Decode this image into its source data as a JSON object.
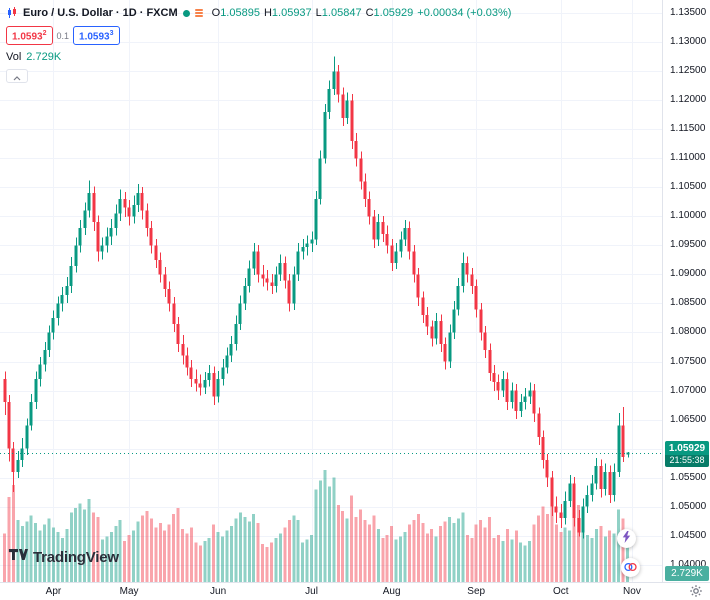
{
  "colors": {
    "up": "#089981",
    "down": "#f23645",
    "vol_up": "rgba(8,153,129,0.45)",
    "vol_down": "rgba(242,54,69,0.45)",
    "grid": "#f0f3fa",
    "accent_blue": "#2962ff",
    "badge": "#089981",
    "badge_dark": "#077c68"
  },
  "header": {
    "title": "Euro / U.S. Dollar · 1D · FXCM",
    "ohlc": {
      "o_label": "O",
      "o": "1.05895",
      "h_label": "H",
      "h": "1.05937",
      "l_label": "L",
      "l": "1.05847",
      "c_label": "C",
      "c": "1.05929",
      "change": "+0.00034 (+0.03%)"
    },
    "bid_ask": {
      "bid": "1.0593",
      "bid_sup": "2",
      "spread": "0.1",
      "ask": "1.0593",
      "ask_sup": "3"
    },
    "volume": {
      "label": "Vol",
      "value": "2.729K"
    }
  },
  "price_scale": {
    "current_price": "1.05929",
    "countdown": "21:55:38",
    "volume_badge": "2.729K"
  },
  "logo": {
    "brand": "TradingView"
  },
  "icons": {
    "pair": "mini-candles",
    "legend_dot": "live-dot",
    "legend_menu": "provider-bars",
    "collapse": "chevron-up",
    "actions": [
      "lightning-bolt",
      "venn-circles"
    ],
    "settings": "gear"
  },
  "chart_data": {
    "type": "candlestick",
    "title": "Euro / U.S. Dollar, 1D, FXCM",
    "symbol": "EUR/USD",
    "timeframe": "1D",
    "exchange": "FXCM",
    "y_range": [
      1.037,
      1.1373
    ],
    "y_ticks": [
      "1.13500",
      "1.13000",
      "1.12500",
      "1.12000",
      "1.11500",
      "1.11000",
      "1.10500",
      "1.10000",
      "1.09500",
      "1.09000",
      "1.08500",
      "1.08000",
      "1.07500",
      "1.07000",
      "1.06500",
      "1.06000",
      "1.05500",
      "1.05000",
      "1.04500",
      "1.04000"
    ],
    "month_ticks": [
      {
        "label": "Apr",
        "index": 11
      },
      {
        "label": "May",
        "index": 28
      },
      {
        "label": "Jun",
        "index": 48
      },
      {
        "label": "Jul",
        "index": 69
      },
      {
        "label": "Aug",
        "index": 87
      },
      {
        "label": "Sep",
        "index": 106
      },
      {
        "label": "Oct",
        "index": 125
      },
      {
        "label": "Nov",
        "index": 141
      }
    ],
    "volume_unit": "K",
    "candles": [
      [
        1.072,
        1.0733,
        1.0658,
        1.068,
        3.2
      ],
      [
        1.068,
        1.0692,
        1.0578,
        1.06,
        5.6
      ],
      [
        1.06,
        1.0611,
        1.0525,
        1.056,
        6.4
      ],
      [
        1.056,
        1.0596,
        1.0549,
        1.058,
        4.1
      ],
      [
        1.058,
        1.0618,
        1.0568,
        1.06,
        3.7
      ],
      [
        1.06,
        1.0652,
        1.0589,
        1.064,
        4.0
      ],
      [
        1.064,
        1.0694,
        1.0631,
        1.068,
        4.4
      ],
      [
        1.068,
        1.0733,
        1.0668,
        1.072,
        3.9
      ],
      [
        1.072,
        1.0758,
        1.0707,
        1.0745,
        3.4
      ],
      [
        1.0745,
        1.0784,
        1.0733,
        1.077,
        3.8
      ],
      [
        1.077,
        1.0812,
        1.0758,
        1.08,
        4.2
      ],
      [
        1.08,
        1.0838,
        1.0788,
        1.0825,
        3.6
      ],
      [
        1.0825,
        1.0862,
        1.0812,
        1.085,
        3.3
      ],
      [
        1.085,
        1.0878,
        1.0836,
        1.0865,
        2.9
      ],
      [
        1.0865,
        1.0896,
        1.0851,
        1.088,
        3.5
      ],
      [
        1.088,
        1.093,
        1.0868,
        1.0915,
        4.6
      ],
      [
        1.0915,
        1.0964,
        1.0903,
        1.095,
        4.9
      ],
      [
        1.095,
        1.0994,
        1.0938,
        1.098,
        5.2
      ],
      [
        1.098,
        1.1024,
        1.0968,
        1.101,
        4.8
      ],
      [
        1.101,
        1.1062,
        1.0998,
        1.104,
        5.5
      ],
      [
        1.104,
        1.1052,
        1.0975,
        1.099,
        4.6
      ],
      [
        1.099,
        1.1002,
        1.0922,
        1.094,
        4.3
      ],
      [
        1.094,
        1.0964,
        1.0926,
        1.095,
        2.8
      ],
      [
        1.095,
        1.0981,
        1.0938,
        1.0965,
        3.0
      ],
      [
        1.0965,
        1.0996,
        1.0951,
        1.098,
        3.3
      ],
      [
        1.098,
        1.1021,
        1.0967,
        1.1005,
        3.7
      ],
      [
        1.1005,
        1.1046,
        1.0992,
        1.103,
        4.1
      ],
      [
        1.103,
        1.1042,
        1.0999,
        1.1015,
        2.7
      ],
      [
        1.1015,
        1.1028,
        1.0984,
        1.1,
        3.1
      ],
      [
        1.1,
        1.1036,
        1.0988,
        1.102,
        3.4
      ],
      [
        1.102,
        1.1056,
        1.1008,
        1.104,
        4.0
      ],
      [
        1.104,
        1.1051,
        1.0995,
        1.101,
        4.4
      ],
      [
        1.101,
        1.1022,
        1.0965,
        1.098,
        4.7
      ],
      [
        1.098,
        1.0992,
        1.0936,
        1.095,
        4.2
      ],
      [
        1.095,
        1.0961,
        1.0911,
        1.0925,
        3.6
      ],
      [
        1.0925,
        1.0938,
        1.0886,
        1.09,
        3.9
      ],
      [
        1.09,
        1.0913,
        1.0861,
        1.0875,
        3.4
      ],
      [
        1.0875,
        1.0888,
        1.0836,
        1.085,
        3.8
      ],
      [
        1.085,
        1.0861,
        1.0801,
        1.0815,
        4.5
      ],
      [
        1.0815,
        1.0827,
        1.0766,
        1.078,
        4.9
      ],
      [
        1.078,
        1.0796,
        1.0745,
        1.076,
        3.5
      ],
      [
        1.076,
        1.0774,
        1.0726,
        1.074,
        3.2
      ],
      [
        1.074,
        1.0753,
        1.0706,
        1.072,
        3.6
      ],
      [
        1.072,
        1.0736,
        1.0698,
        1.0712,
        2.6
      ],
      [
        1.0712,
        1.0728,
        1.0691,
        1.0705,
        2.4
      ],
      [
        1.0705,
        1.0732,
        1.0694,
        1.0718,
        2.7
      ],
      [
        1.0718,
        1.0744,
        1.0707,
        1.073,
        2.9
      ],
      [
        1.073,
        1.0741,
        1.0675,
        1.069,
        3.8
      ],
      [
        1.069,
        1.0734,
        1.0679,
        1.072,
        3.3
      ],
      [
        1.072,
        1.0754,
        1.0709,
        1.074,
        3.0
      ],
      [
        1.074,
        1.0774,
        1.0729,
        1.076,
        3.4
      ],
      [
        1.076,
        1.0794,
        1.0749,
        1.078,
        3.7
      ],
      [
        1.078,
        1.0829,
        1.0769,
        1.0815,
        4.2
      ],
      [
        1.0815,
        1.0864,
        1.0804,
        1.085,
        4.6
      ],
      [
        1.085,
        1.0894,
        1.0839,
        1.088,
        4.3
      ],
      [
        1.088,
        1.0924,
        1.0869,
        1.091,
        4.0
      ],
      [
        1.091,
        1.0954,
        1.0899,
        1.094,
        4.5
      ],
      [
        1.094,
        1.0951,
        1.0886,
        1.09,
        3.9
      ],
      [
        1.09,
        1.0916,
        1.0879,
        1.0893,
        2.5
      ],
      [
        1.0893,
        1.0908,
        1.0872,
        1.0886,
        2.3
      ],
      [
        1.0886,
        1.0901,
        1.0866,
        1.088,
        2.6
      ],
      [
        1.088,
        1.0914,
        1.0869,
        1.09,
        2.9
      ],
      [
        1.09,
        1.0934,
        1.0889,
        1.092,
        3.2
      ],
      [
        1.092,
        1.0931,
        1.0876,
        1.089,
        3.6
      ],
      [
        1.089,
        1.0901,
        1.0836,
        1.085,
        4.1
      ],
      [
        1.085,
        1.0914,
        1.0839,
        1.09,
        4.4
      ],
      [
        1.09,
        1.0954,
        1.0889,
        1.094,
        4.1
      ],
      [
        1.094,
        1.0961,
        1.0926,
        1.0947,
        2.6
      ],
      [
        1.0947,
        1.0967,
        1.0933,
        1.0953,
        2.8
      ],
      [
        1.0953,
        1.0974,
        1.0939,
        1.096,
        3.1
      ],
      [
        1.096,
        1.1044,
        1.0951,
        1.103,
        6.1
      ],
      [
        1.103,
        1.1114,
        1.1021,
        1.11,
        6.7
      ],
      [
        1.11,
        1.1194,
        1.1091,
        1.118,
        7.4
      ],
      [
        1.118,
        1.1234,
        1.1168,
        1.122,
        6.3
      ],
      [
        1.122,
        1.1276,
        1.1209,
        1.125,
        6.9
      ],
      [
        1.125,
        1.1261,
        1.1196,
        1.121,
        5.1
      ],
      [
        1.121,
        1.1222,
        1.1156,
        1.117,
        4.7
      ],
      [
        1.117,
        1.1214,
        1.1159,
        1.12,
        4.2
      ],
      [
        1.12,
        1.1211,
        1.1116,
        1.113,
        5.7
      ],
      [
        1.113,
        1.1144,
        1.1086,
        1.11,
        4.3
      ],
      [
        1.11,
        1.1112,
        1.1046,
        1.106,
        4.8
      ],
      [
        1.106,
        1.1074,
        1.1016,
        1.103,
        4.1
      ],
      [
        1.103,
        1.1043,
        1.0986,
        1.1,
        3.8
      ],
      [
        1.1,
        1.1011,
        1.0946,
        1.096,
        4.4
      ],
      [
        1.096,
        1.1004,
        1.0949,
        1.099,
        3.5
      ],
      [
        1.099,
        1.1001,
        1.0956,
        1.097,
        2.9
      ],
      [
        1.097,
        1.0984,
        1.0936,
        1.095,
        3.1
      ],
      [
        1.095,
        1.0961,
        1.0906,
        1.092,
        3.7
      ],
      [
        1.092,
        1.0954,
        1.0909,
        1.094,
        2.8
      ],
      [
        1.094,
        1.0974,
        1.0929,
        1.096,
        3.0
      ],
      [
        1.096,
        1.0994,
        1.0949,
        1.098,
        3.3
      ],
      [
        1.098,
        1.0991,
        1.0926,
        1.094,
        3.8
      ],
      [
        1.094,
        1.0951,
        1.0886,
        1.09,
        4.1
      ],
      [
        1.09,
        1.0911,
        1.0846,
        1.086,
        4.5
      ],
      [
        1.086,
        1.0871,
        1.0816,
        1.083,
        3.9
      ],
      [
        1.083,
        1.0844,
        1.0796,
        1.081,
        3.2
      ],
      [
        1.081,
        1.0821,
        1.0776,
        1.079,
        3.5
      ],
      [
        1.079,
        1.0834,
        1.0779,
        1.082,
        3.0
      ],
      [
        1.082,
        1.0831,
        1.0766,
        1.078,
        3.7
      ],
      [
        1.078,
        1.0791,
        1.0736,
        1.075,
        4.0
      ],
      [
        1.075,
        1.0814,
        1.0739,
        1.08,
        4.3
      ],
      [
        1.08,
        1.0854,
        1.0789,
        1.084,
        3.9
      ],
      [
        1.084,
        1.0894,
        1.0829,
        1.088,
        4.2
      ],
      [
        1.088,
        1.0938,
        1.0869,
        1.092,
        4.6
      ],
      [
        1.092,
        1.0931,
        1.0886,
        1.09,
        3.1
      ],
      [
        1.09,
        1.0911,
        1.0866,
        1.088,
        2.9
      ],
      [
        1.088,
        1.0891,
        1.0826,
        1.084,
        3.8
      ],
      [
        1.084,
        1.0851,
        1.0786,
        1.08,
        4.1
      ],
      [
        1.08,
        1.0811,
        1.0756,
        1.077,
        3.6
      ],
      [
        1.077,
        1.0781,
        1.0716,
        1.073,
        4.3
      ],
      [
        1.073,
        1.0744,
        1.0699,
        1.0715,
        2.9
      ],
      [
        1.0715,
        1.0728,
        1.0684,
        1.07,
        3.1
      ],
      [
        1.07,
        1.0734,
        1.0689,
        1.072,
        2.7
      ],
      [
        1.072,
        1.0731,
        1.0666,
        1.068,
        3.5
      ],
      [
        1.068,
        1.0714,
        1.0669,
        1.07,
        2.8
      ],
      [
        1.07,
        1.0711,
        1.0651,
        1.0665,
        3.4
      ],
      [
        1.0665,
        1.0694,
        1.0654,
        1.068,
        2.6
      ],
      [
        1.068,
        1.0704,
        1.0667,
        1.069,
        2.4
      ],
      [
        1.069,
        1.0714,
        1.0677,
        1.07,
        2.7
      ],
      [
        1.07,
        1.0711,
        1.0646,
        1.066,
        3.8
      ],
      [
        1.066,
        1.0671,
        1.0606,
        1.062,
        4.4
      ],
      [
        1.062,
        1.0631,
        1.0566,
        1.058,
        5.0
      ],
      [
        1.058,
        1.0591,
        1.0534,
        1.055,
        4.5
      ],
      [
        1.055,
        1.0561,
        1.0484,
        1.05,
        5.7
      ],
      [
        1.05,
        1.0517,
        1.0472,
        1.049,
        3.8
      ],
      [
        1.049,
        1.0504,
        1.0463,
        1.048,
        3.3
      ],
      [
        1.048,
        1.0526,
        1.0469,
        1.051,
        3.6
      ],
      [
        1.051,
        1.0554,
        1.0499,
        1.054,
        3.4
      ],
      [
        1.054,
        1.0551,
        1.0466,
        1.048,
        4.7
      ],
      [
        1.048,
        1.0494,
        1.0448,
        1.0455,
        5.1
      ],
      [
        1.0455,
        1.0514,
        1.0445,
        1.05,
        4.3
      ],
      [
        1.05,
        1.0536,
        1.0489,
        1.052,
        3.1
      ],
      [
        1.052,
        1.0554,
        1.0509,
        1.054,
        2.9
      ],
      [
        1.054,
        1.0584,
        1.0529,
        1.057,
        3.5
      ],
      [
        1.057,
        1.0581,
        1.0516,
        1.053,
        3.7
      ],
      [
        1.053,
        1.0574,
        1.0519,
        1.056,
        3.0
      ],
      [
        1.056,
        1.0571,
        1.0506,
        1.052,
        3.4
      ],
      [
        1.052,
        1.0574,
        1.0509,
        1.056,
        3.2
      ],
      [
        1.056,
        1.0661,
        1.0551,
        1.064,
        4.8
      ],
      [
        1.064,
        1.0672,
        1.0577,
        1.0585,
        4.2
      ],
      [
        1.05895,
        1.05937,
        1.05847,
        1.05929,
        2.729
      ]
    ]
  }
}
